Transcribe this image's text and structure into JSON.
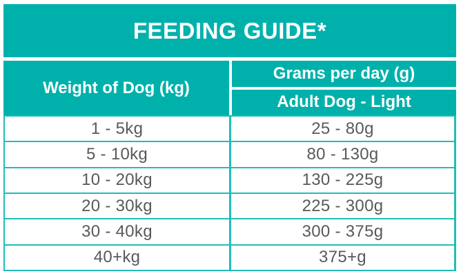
{
  "title": "FEEDING GUIDE*",
  "colors": {
    "teal": "#00b1ab",
    "grid_line_teal": "#1fbdb7",
    "header_text": "#ffffff",
    "cell_text": "#58595b"
  },
  "table": {
    "weight_column_header": "Weight of Dog (kg)",
    "grams_column_header": "Grams per day (g)",
    "grams_subheader": "Adult Dog - Light",
    "rows": [
      {
        "weight": "1 - 5kg",
        "grams": "25 - 80g"
      },
      {
        "weight": "5 - 10kg",
        "grams": "80 - 130g"
      },
      {
        "weight": "10 - 20kg",
        "grams": "130 - 225g"
      },
      {
        "weight": "20 - 30kg",
        "grams": "225 - 300g"
      },
      {
        "weight": "30 - 40kg",
        "grams": "300 - 375g"
      },
      {
        "weight": "40+kg",
        "grams": "375+g"
      }
    ]
  }
}
